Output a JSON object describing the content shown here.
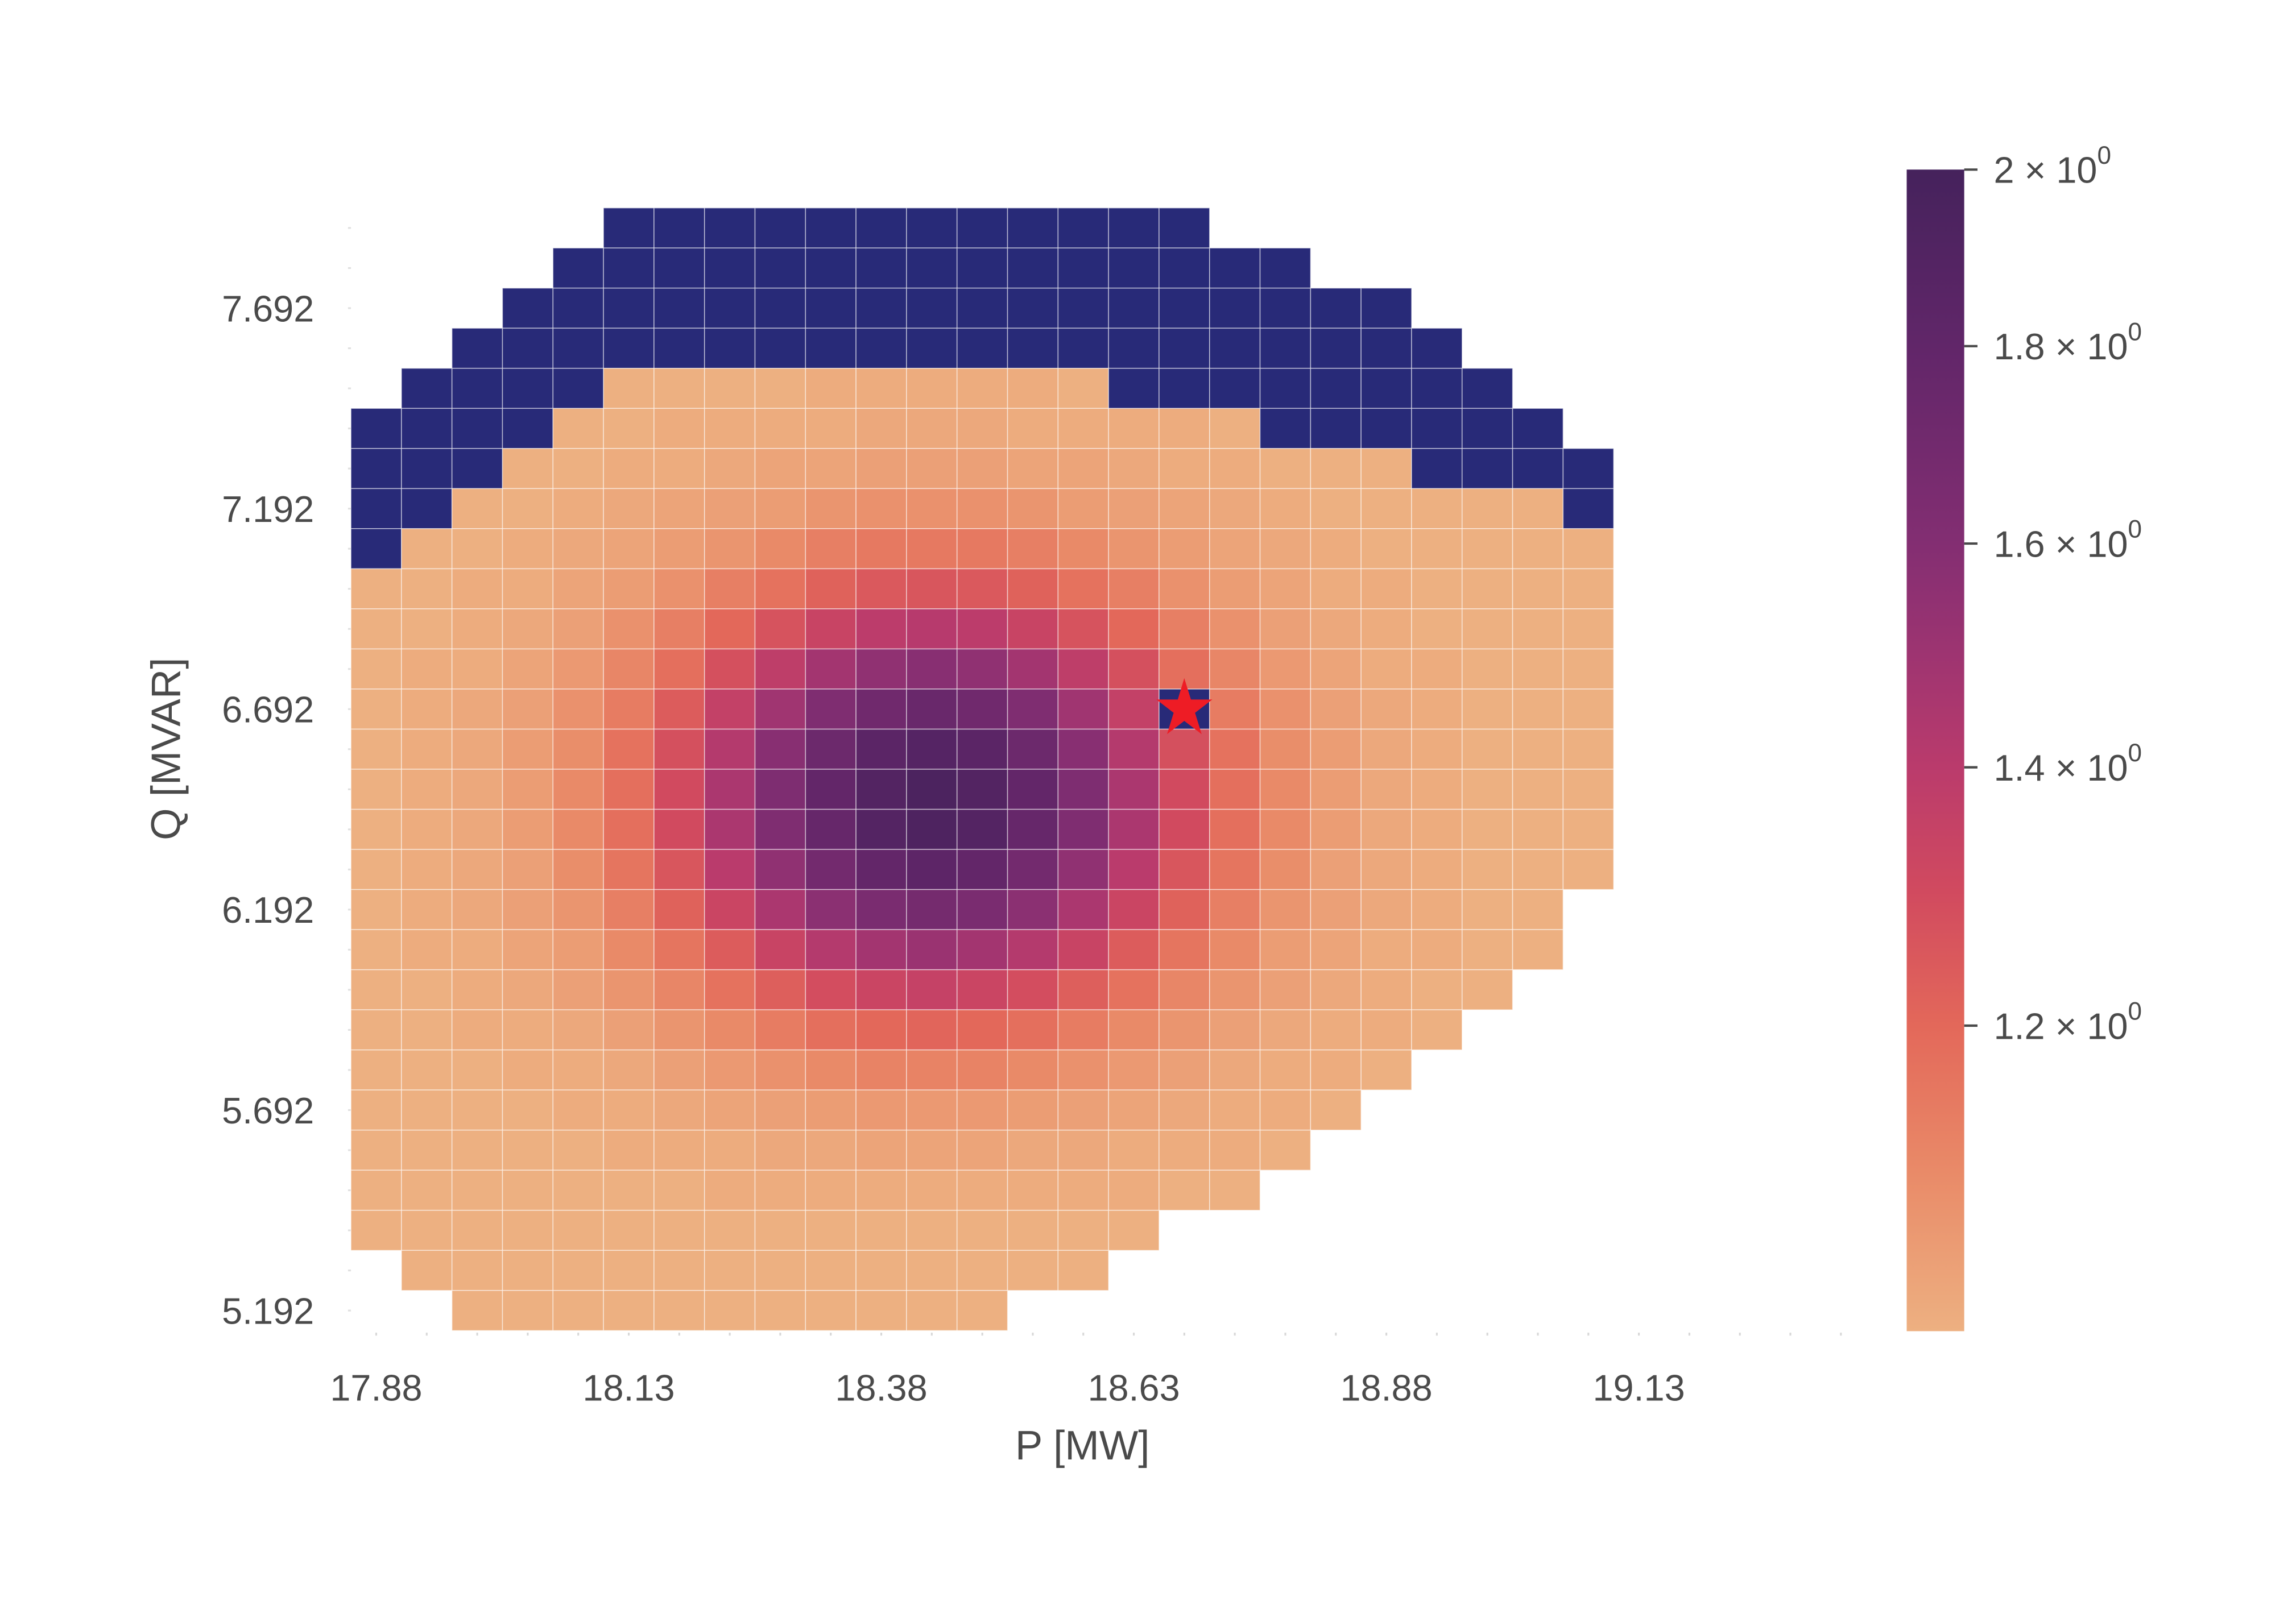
{
  "chart_data": {
    "type": "heatmap",
    "title": "",
    "xlabel": "P [MW]",
    "ylabel": "Q [MVAR]",
    "x_start": 17.88,
    "x_step": 0.05,
    "y_top": 7.892,
    "y_step": -0.1,
    "x_ticks": [
      {
        "value": 17.88,
        "label": "17.88"
      },
      {
        "value": 18.13,
        "label": "18.13"
      },
      {
        "value": 18.38,
        "label": "18.38"
      },
      {
        "value": 18.63,
        "label": "18.63"
      },
      {
        "value": 18.88,
        "label": "18.88"
      },
      {
        "value": 19.13,
        "label": "19.13"
      }
    ],
    "y_ticks": [
      {
        "value": 7.692,
        "label": "7.692"
      },
      {
        "value": 7.192,
        "label": "7.192"
      },
      {
        "value": 6.692,
        "label": "6.692"
      },
      {
        "value": 6.192,
        "label": "6.192"
      },
      {
        "value": 5.692,
        "label": "5.692"
      },
      {
        "value": 5.192,
        "label": "5.192"
      }
    ],
    "colorbar": {
      "scale": "log",
      "vmin": 1.0,
      "vmax": 2.0,
      "ticks": [
        {
          "value": 2.0,
          "label": "2 × 10",
          "exp": "0"
        },
        {
          "value": 1.8,
          "label": "1.8 × 10",
          "exp": "0"
        },
        {
          "value": 1.6,
          "label": "1.6 × 10",
          "exp": "0"
        },
        {
          "value": 1.4,
          "label": "1.4 × 10",
          "exp": "0"
        },
        {
          "value": 1.2,
          "label": "1.2 × 10",
          "exp": "0"
        }
      ],
      "colormap": [
        {
          "v": 1.0,
          "color": "#EDB081"
        },
        {
          "v": 1.1,
          "color": "#E98A68"
        },
        {
          "v": 1.2,
          "color": "#E3685A"
        },
        {
          "v": 1.3,
          "color": "#D14A5F"
        },
        {
          "v": 1.4,
          "color": "#BA3B6C"
        },
        {
          "v": 1.5,
          "color": "#9D3471"
        },
        {
          "v": 1.6,
          "color": "#832E72"
        },
        {
          "v": 1.8,
          "color": "#612669"
        },
        {
          "v": 2.0,
          "color": "#45225C"
        }
      ]
    },
    "masked_marker": "M",
    "masked_color": "#282A78",
    "star_marker": {
      "p": 18.68,
      "q": 6.692,
      "color": "#EE1C25"
    },
    "values": [
      [
        null,
        null,
        null,
        null,
        null,
        "M",
        "M",
        "M",
        "M",
        "M",
        "M",
        "M",
        "M",
        "M",
        "M",
        "M",
        "M",
        null,
        null,
        null,
        null,
        null,
        null,
        null,
        null
      ],
      [
        null,
        null,
        null,
        null,
        "M",
        "M",
        "M",
        "M",
        "M",
        "M",
        "M",
        "M",
        "M",
        "M",
        "M",
        "M",
        "M",
        "M",
        "M",
        null,
        null,
        null,
        null,
        null,
        null
      ],
      [
        null,
        null,
        null,
        "M",
        "M",
        "M",
        "M",
        "M",
        "M",
        "M",
        "M",
        "M",
        "M",
        "M",
        "M",
        "M",
        "M",
        "M",
        "M",
        "M",
        "M",
        null,
        null,
        null,
        null
      ],
      [
        null,
        null,
        "M",
        "M",
        "M",
        "M",
        "M",
        "M",
        "M",
        "M",
        "M",
        "M",
        "M",
        "M",
        "M",
        "M",
        "M",
        "M",
        "M",
        "M",
        "M",
        "M",
        null,
        null,
        null
      ],
      [
        null,
        "M",
        "M",
        "M",
        "M",
        1.0,
        1.0,
        1.0,
        1.0,
        1.01,
        1.01,
        1.01,
        1.01,
        1.01,
        1.0,
        "M",
        "M",
        "M",
        "M",
        "M",
        "M",
        "M",
        "M",
        null,
        null
      ],
      [
        "M",
        "M",
        "M",
        "M",
        1.0,
        1.0,
        1.01,
        1.01,
        1.01,
        1.01,
        1.02,
        1.02,
        1.02,
        1.01,
        1.01,
        1.01,
        1.01,
        1.0,
        "M",
        "M",
        "M",
        "M",
        "M",
        "M",
        null
      ],
      [
        "M",
        "M",
        "M",
        1.0,
        1.0,
        1.01,
        1.01,
        1.02,
        1.03,
        1.03,
        1.04,
        1.04,
        1.04,
        1.03,
        1.03,
        1.02,
        1.01,
        1.01,
        1.0,
        1.0,
        1.0,
        "M",
        "M",
        "M",
        "M"
      ],
      [
        "M",
        "M",
        1.0,
        1.0,
        1.01,
        1.02,
        1.03,
        1.04,
        1.05,
        1.07,
        1.08,
        1.08,
        1.08,
        1.07,
        1.05,
        1.04,
        1.03,
        1.02,
        1.01,
        1.0,
        1.0,
        1.0,
        1.0,
        1.0,
        "M"
      ],
      [
        "M",
        1.0,
        1.0,
        1.01,
        1.02,
        1.03,
        1.05,
        1.07,
        1.1,
        1.13,
        1.15,
        1.15,
        1.15,
        1.13,
        1.1,
        1.07,
        1.05,
        1.03,
        1.02,
        1.01,
        1.0,
        1.0,
        1.0,
        1.0,
        1.0
      ],
      [
        1.0,
        1.0,
        1.01,
        1.01,
        1.03,
        1.05,
        1.08,
        1.13,
        1.17,
        1.22,
        1.25,
        1.26,
        1.25,
        1.22,
        1.17,
        1.13,
        1.08,
        1.05,
        1.03,
        1.01,
        1.01,
        1.0,
        1.0,
        1.0,
        1.0
      ],
      [
        1.0,
        1.0,
        1.01,
        1.02,
        1.04,
        1.08,
        1.13,
        1.2,
        1.27,
        1.34,
        1.39,
        1.41,
        1.39,
        1.34,
        1.27,
        1.2,
        1.13,
        1.08,
        1.04,
        1.02,
        1.01,
        1.0,
        1.0,
        1.0,
        1.0
      ],
      [
        1.0,
        1.01,
        1.01,
        1.03,
        1.06,
        1.11,
        1.18,
        1.28,
        1.38,
        1.48,
        1.55,
        1.58,
        1.55,
        1.48,
        1.38,
        1.28,
        1.18,
        1.11,
        1.06,
        1.03,
        1.01,
        1.01,
        1.0,
        1.0,
        1.0
      ],
      [
        1.0,
        1.01,
        1.02,
        1.04,
        1.08,
        1.14,
        1.24,
        1.36,
        1.49,
        1.62,
        1.71,
        1.75,
        1.71,
        1.62,
        1.49,
        1.36,
        "M",
        1.14,
        1.08,
        1.04,
        1.02,
        1.01,
        1.0,
        1.0,
        1.0
      ],
      [
        1.0,
        1.01,
        1.02,
        1.05,
        1.09,
        1.17,
        1.28,
        1.42,
        1.58,
        1.73,
        1.84,
        1.88,
        1.84,
        1.73,
        1.58,
        1.42,
        1.28,
        1.17,
        1.09,
        1.05,
        1.02,
        1.01,
        1.0,
        1.0,
        1.0
      ],
      [
        1.0,
        1.01,
        1.02,
        1.05,
        1.1,
        1.18,
        1.3,
        1.45,
        1.63,
        1.79,
        1.9,
        1.95,
        1.9,
        1.79,
        1.63,
        1.45,
        1.3,
        1.18,
        1.1,
        1.05,
        1.02,
        1.01,
        1.0,
        1.0,
        1.0
      ],
      [
        1.0,
        1.01,
        1.02,
        1.05,
        1.1,
        1.18,
        1.3,
        1.45,
        1.62,
        1.77,
        1.89,
        1.93,
        1.89,
        1.77,
        1.62,
        1.45,
        1.3,
        1.18,
        1.1,
        1.05,
        1.02,
        1.01,
        1.0,
        1.0,
        1.0
      ],
      [
        1.0,
        1.01,
        1.02,
        1.04,
        1.09,
        1.16,
        1.26,
        1.4,
        1.55,
        1.69,
        1.79,
        1.83,
        1.79,
        1.69,
        1.55,
        1.4,
        1.26,
        1.16,
        1.09,
        1.04,
        1.02,
        1.01,
        1.0,
        1.0,
        1.0
      ],
      [
        1.0,
        1.01,
        1.02,
        1.04,
        1.07,
        1.13,
        1.22,
        1.33,
        1.45,
        1.57,
        1.65,
        1.68,
        1.65,
        1.57,
        1.45,
        1.33,
        1.22,
        1.13,
        1.07,
        1.04,
        1.02,
        1.01,
        1.0,
        1.0,
        null
      ],
      [
        1.0,
        1.01,
        1.01,
        1.03,
        1.05,
        1.1,
        1.16,
        1.24,
        1.34,
        1.42,
        1.48,
        1.51,
        1.48,
        1.42,
        1.34,
        1.24,
        1.16,
        1.1,
        1.05,
        1.03,
        1.01,
        1.01,
        1.0,
        1.0,
        null
      ],
      [
        1.0,
        1.0,
        1.01,
        1.02,
        1.04,
        1.07,
        1.11,
        1.17,
        1.23,
        1.29,
        1.33,
        1.35,
        1.33,
        1.29,
        1.23,
        1.17,
        1.11,
        1.07,
        1.04,
        1.02,
        1.01,
        1.0,
        1.0,
        null,
        null
      ],
      [
        1.0,
        1.0,
        1.01,
        1.01,
        1.02,
        1.04,
        1.07,
        1.1,
        1.14,
        1.18,
        1.2,
        1.21,
        1.2,
        1.18,
        1.14,
        1.1,
        1.07,
        1.04,
        1.02,
        1.01,
        1.01,
        1.0,
        null,
        null,
        null
      ],
      [
        1.0,
        1.0,
        1.0,
        1.01,
        1.01,
        1.02,
        1.04,
        1.06,
        1.08,
        1.1,
        1.12,
        1.12,
        1.12,
        1.1,
        1.08,
        1.06,
        1.04,
        1.02,
        1.01,
        1.01,
        1.0,
        null,
        null,
        null,
        null
      ],
      [
        1.0,
        1.0,
        1.0,
        1.0,
        1.01,
        1.01,
        1.02,
        1.03,
        1.04,
        1.05,
        1.06,
        1.06,
        1.06,
        1.05,
        1.04,
        1.03,
        1.02,
        1.01,
        1.01,
        1.0,
        null,
        null,
        null,
        null,
        null
      ],
      [
        1.0,
        1.0,
        1.0,
        1.0,
        1.0,
        1.01,
        1.01,
        1.01,
        1.02,
        1.02,
        1.03,
        1.03,
        1.03,
        1.02,
        1.02,
        1.01,
        1.01,
        1.01,
        1.0,
        null,
        null,
        null,
        null,
        null,
        null
      ],
      [
        1.0,
        1.0,
        1.0,
        1.0,
        1.0,
        1.0,
        1.0,
        1.01,
        1.01,
        1.01,
        1.01,
        1.01,
        1.01,
        1.01,
        1.01,
        1.01,
        1.0,
        1.0,
        null,
        null,
        null,
        null,
        null,
        null,
        null
      ],
      [
        1.0,
        1.0,
        1.0,
        1.0,
        1.0,
        1.0,
        1.0,
        1.0,
        1.0,
        1.0,
        1.0,
        1.0,
        1.0,
        1.0,
        1.0,
        1.0,
        null,
        null,
        null,
        null,
        null,
        null,
        null,
        null,
        null
      ],
      [
        null,
        1.0,
        1.0,
        1.0,
        1.0,
        1.0,
        1.0,
        1.0,
        1.0,
        1.0,
        1.0,
        1.0,
        1.0,
        1.0,
        1.0,
        null,
        null,
        null,
        null,
        null,
        null,
        null,
        null,
        null,
        null
      ],
      [
        null,
        null,
        1.0,
        1.0,
        1.0,
        1.0,
        1.0,
        1.0,
        1.0,
        1.0,
        1.0,
        1.0,
        1.0,
        null,
        null,
        null,
        null,
        null,
        null,
        null,
        null,
        null,
        null,
        null,
        null
      ]
    ]
  }
}
